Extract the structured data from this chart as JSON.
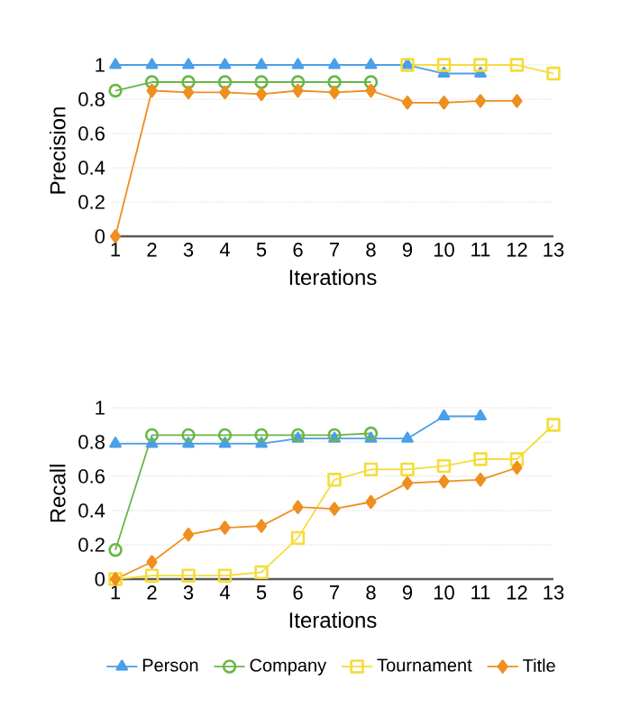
{
  "chart_data": [
    {
      "type": "line",
      "ylabel": "Precision",
      "xlabel": "Iterations",
      "xlim": [
        0.9,
        13
      ],
      "xticks": [
        1,
        2,
        3,
        4,
        5,
        6,
        7,
        8,
        9,
        10,
        11,
        12,
        13
      ],
      "ylim": [
        0,
        1
      ],
      "yticks": [
        0,
        0.2,
        0.4,
        0.6,
        0.8,
        1
      ],
      "grid": "y",
      "legend": false,
      "x": [
        1,
        2,
        3,
        4,
        5,
        6,
        7,
        8,
        9,
        10,
        11,
        12,
        13
      ],
      "series": [
        {
          "color": "#4a9fe8",
          "marker": "triangle",
          "values": [
            1,
            1,
            1,
            1,
            1,
            1,
            1,
            1,
            1,
            0.95,
            0.95,
            null,
            null
          ]
        },
        {
          "color": "#6ab648",
          "marker": "circle",
          "values": [
            0.85,
            0.9,
            0.9,
            0.9,
            0.9,
            0.9,
            0.9,
            0.9,
            null,
            null,
            null,
            null,
            null
          ]
        },
        {
          "color": "#f5dc3c",
          "marker": "square",
          "values": [
            null,
            null,
            null,
            null,
            null,
            null,
            null,
            null,
            1,
            1,
            1,
            1,
            0.95
          ]
        },
        {
          "color": "#ee8f1f",
          "marker": "diamond",
          "values": [
            0,
            0.85,
            0.84,
            0.84,
            0.83,
            0.85,
            0.84,
            0.85,
            0.78,
            0.78,
            0.79,
            0.79,
            null
          ]
        }
      ]
    },
    {
      "type": "line",
      "ylabel": "Recall",
      "xlabel": "Iterations",
      "xlim": [
        0.9,
        13
      ],
      "xticks": [
        1,
        2,
        3,
        4,
        5,
        6,
        7,
        8,
        9,
        10,
        11,
        12,
        13
      ],
      "ylim": [
        0,
        1
      ],
      "yticks": [
        0,
        0.2,
        0.4,
        0.6,
        0.8,
        1
      ],
      "grid": "y",
      "legend": "bottom",
      "x": [
        1,
        2,
        3,
        4,
        5,
        6,
        7,
        8,
        9,
        10,
        11,
        12,
        13
      ],
      "series": [
        {
          "name": "Person",
          "color": "#4a9fe8",
          "marker": "triangle",
          "values": [
            0.79,
            0.79,
            0.79,
            0.79,
            0.79,
            0.82,
            0.82,
            0.82,
            0.82,
            0.95,
            0.95,
            null,
            null
          ]
        },
        {
          "name": "Company",
          "color": "#6ab648",
          "marker": "circle",
          "values": [
            0.17,
            0.84,
            0.84,
            0.84,
            0.84,
            0.84,
            0.84,
            0.85,
            null,
            null,
            null,
            null,
            null
          ]
        },
        {
          "name": "Tournament",
          "color": "#f5dc3c",
          "marker": "square",
          "values": [
            0,
            0.02,
            0.02,
            0.02,
            0.04,
            0.24,
            0.58,
            0.64,
            0.64,
            0.66,
            0.7,
            0.7,
            0.9
          ]
        },
        {
          "name": "Title",
          "color": "#ee8f1f",
          "marker": "diamond",
          "values": [
            0,
            0.1,
            0.26,
            0.3,
            0.31,
            0.42,
            0.41,
            0.45,
            0.56,
            0.57,
            0.58,
            0.65,
            null
          ]
        }
      ]
    }
  ]
}
